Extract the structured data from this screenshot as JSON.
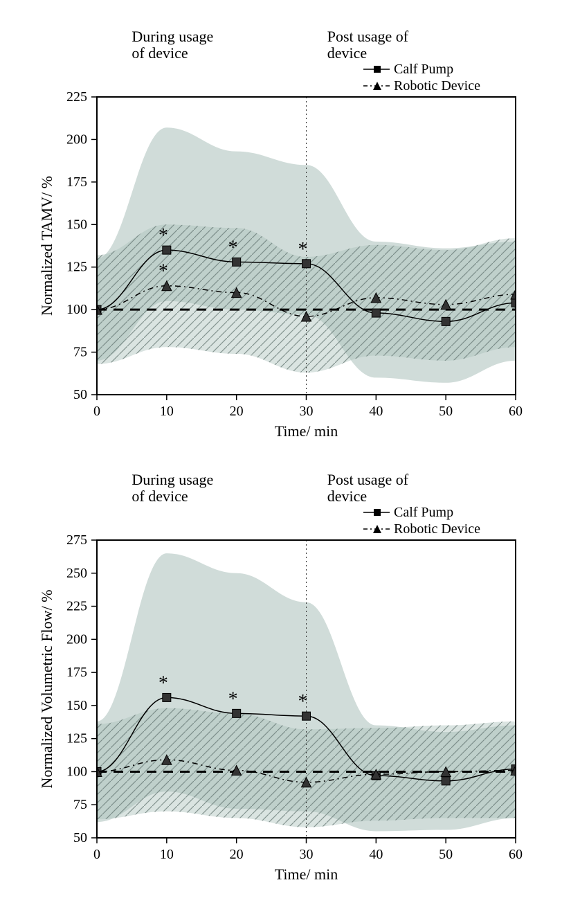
{
  "global": {
    "background_color": "#ffffff",
    "axis_color": "#000000",
    "band_solid_fill": "#c8d6d2",
    "band_hatched_fill": "#a9bfba",
    "band_hatched_stroke": "#6e827d",
    "baseline_color": "#000000",
    "divider_color": "#333333",
    "marker_size": 6,
    "line_width": 1.5,
    "font_family": "Times New Roman",
    "legend_items": [
      {
        "label": "Calf Pump",
        "marker": "square",
        "line_dash": "solid"
      },
      {
        "label": "Robotic Device",
        "marker": "triangle",
        "line_dash": "dashdot"
      }
    ],
    "annotations": {
      "during": "During usage\nof device",
      "post": "Post usage of\ndevice"
    }
  },
  "panels": [
    {
      "id": "tamv",
      "type": "line_with_band",
      "ylabel": "Normalized TAMV/ %",
      "xlabel": "Time/ min",
      "xlim": [
        0,
        60
      ],
      "xtick_step": 10,
      "ylim": [
        50,
        225
      ],
      "ytick_step": 25,
      "baseline_y": 100,
      "divider_x": 30,
      "series": [
        {
          "name": "Calf Pump",
          "marker": "square",
          "x": [
            0,
            10,
            20,
            30,
            40,
            50,
            60
          ],
          "y": [
            100,
            135,
            128,
            127,
            98,
            93,
            104
          ],
          "band_lo": [
            70,
            105,
            100,
            97,
            60,
            57,
            70
          ],
          "band_hi": [
            130,
            207,
            193,
            185,
            140,
            136,
            140
          ],
          "band_style": "solid",
          "significance_x": [
            10,
            20,
            30
          ]
        },
        {
          "name": "Robotic Device",
          "marker": "triangle",
          "x": [
            0,
            10,
            20,
            30,
            40,
            50,
            60
          ],
          "y": [
            100,
            114,
            110,
            96,
            107,
            103,
            109
          ],
          "band_lo": [
            68,
            78,
            74,
            63,
            73,
            70,
            78
          ],
          "band_hi": [
            132,
            150,
            148,
            131,
            138,
            135,
            142
          ],
          "band_style": "hatched",
          "significance_x": [
            10
          ]
        }
      ]
    },
    {
      "id": "volflow",
      "type": "line_with_band",
      "ylabel": "Normalized Volumetric Flow/ %",
      "xlabel": "Time/ min",
      "xlim": [
        0,
        60
      ],
      "xtick_step": 10,
      "ylim": [
        50,
        275
      ],
      "ytick_step": 25,
      "baseline_y": 100,
      "divider_x": 30,
      "series": [
        {
          "name": "Calf Pump",
          "marker": "square",
          "x": [
            0,
            10,
            20,
            30,
            40,
            50,
            60
          ],
          "y": [
            100,
            156,
            144,
            142,
            97,
            93,
            102
          ],
          "band_lo": [
            62,
            85,
            72,
            70,
            55,
            56,
            65
          ],
          "band_hi": [
            138,
            265,
            250,
            228,
            135,
            130,
            135
          ],
          "band_style": "solid",
          "significance_x": [
            10,
            20,
            30
          ]
        },
        {
          "name": "Robotic Device",
          "marker": "triangle",
          "x": [
            0,
            10,
            20,
            30,
            40,
            50,
            60
          ],
          "y": [
            100,
            109,
            101,
            92,
            98,
            100,
            101
          ],
          "band_lo": [
            64,
            70,
            65,
            58,
            63,
            65,
            65
          ],
          "band_hi": [
            136,
            148,
            144,
            132,
            133,
            135,
            138
          ],
          "band_style": "hatched",
          "significance_x": []
        }
      ]
    }
  ]
}
